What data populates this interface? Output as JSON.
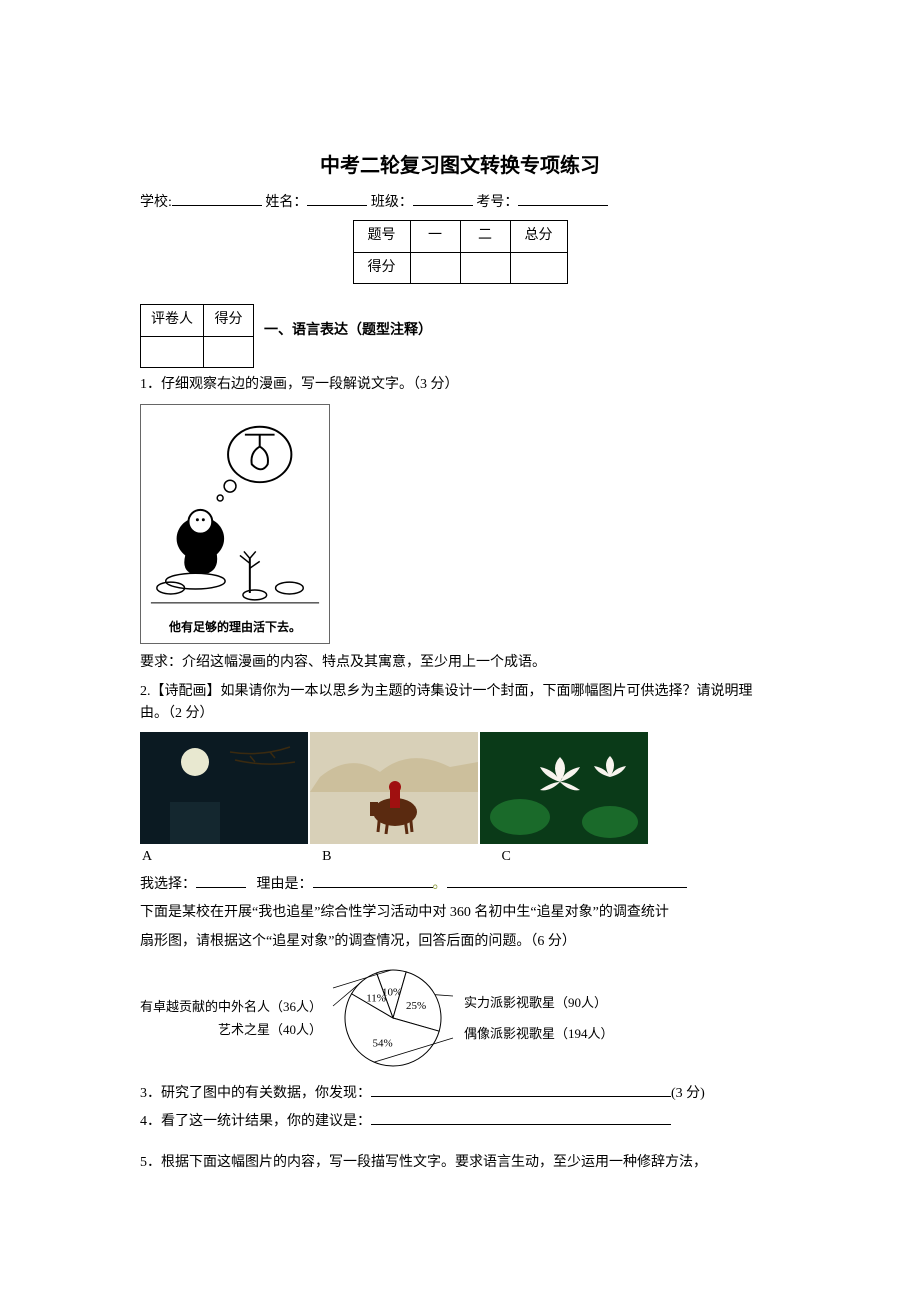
{
  "title": "中考二轮复习图文转换专项练习",
  "form": {
    "school_label": "学校:",
    "name_label": "姓名：",
    "class_label": "班级：",
    "exam_no_label": "考号："
  },
  "score_table": {
    "headers": [
      "题号",
      "一",
      "二",
      "总分"
    ],
    "row2": "得分"
  },
  "grader_table": {
    "col1": "评卷人",
    "col2": "得分"
  },
  "section1": {
    "heading": "一、语言表达（题型注释）"
  },
  "q1": {
    "text": "1．仔细观察右边的漫画，写一段解说文字。（3 分）",
    "caption": "他有足够的理由活下去。",
    "req": "要求：介绍这幅漫画的内容、特点及其寓意，至少用上一个成语。"
  },
  "q2": {
    "text": "2.【诗配画】如果请你为一本以思乡为主题的诗集设计一个封面，下面哪幅图片可供选择？请说明理由。（2 分）",
    "opt_a": "A",
    "opt_b": "B",
    "opt_c": "C",
    "choose_label": "我选择：",
    "reason_label": "理由是："
  },
  "survey": {
    "intro1": "下面是某校在开展“我也追星”综合性学习活动中对 360 名初中生“追星对象”的调查统计",
    "intro2": "扇形图，请根据这个“追星对象”的调查情况，回答后面的问题。（6 分）",
    "pie": {
      "slices": [
        {
          "label_left": "有卓越贡献的中外名人（36人）",
          "pct": 10,
          "pct_label": "10%",
          "color": "#ffffff"
        },
        {
          "label_left": "艺术之星（40人）",
          "pct": 11,
          "pct_label": "11%",
          "color": "#ffffff"
        },
        {
          "label_right": "实力派影视歌星（90人）",
          "pct": 25,
          "pct_label": "25%",
          "color": "#ffffff"
        },
        {
          "label_right": "偶像派影视歌星（194人）",
          "pct": 54,
          "pct_label": "54%",
          "color": "#ffffff"
        }
      ],
      "stroke": "#000000",
      "radius": 48
    }
  },
  "q3": {
    "text": "3．研究了图中的有关数据，你发现：",
    "pts": "(3 分)"
  },
  "q4": {
    "text": "4．看了这一统计结果，你的建议是："
  },
  "q5": {
    "text": "5．根据下面这幅图片的内容，写一段描写性文字。要求语言生动，至少运用一种修辞方法，"
  },
  "images": {
    "a": {
      "bg": "#0b1a22",
      "moon": "#e8e8d0",
      "branch": "#3a2a10"
    },
    "b": {
      "bg": "#d8d0b8",
      "horse": "#5a2a10",
      "rider": "#a01010"
    },
    "c": {
      "bg": "#0a3a18",
      "flower": "#f8f4ee",
      "leaf": "#1a6a2a"
    }
  }
}
